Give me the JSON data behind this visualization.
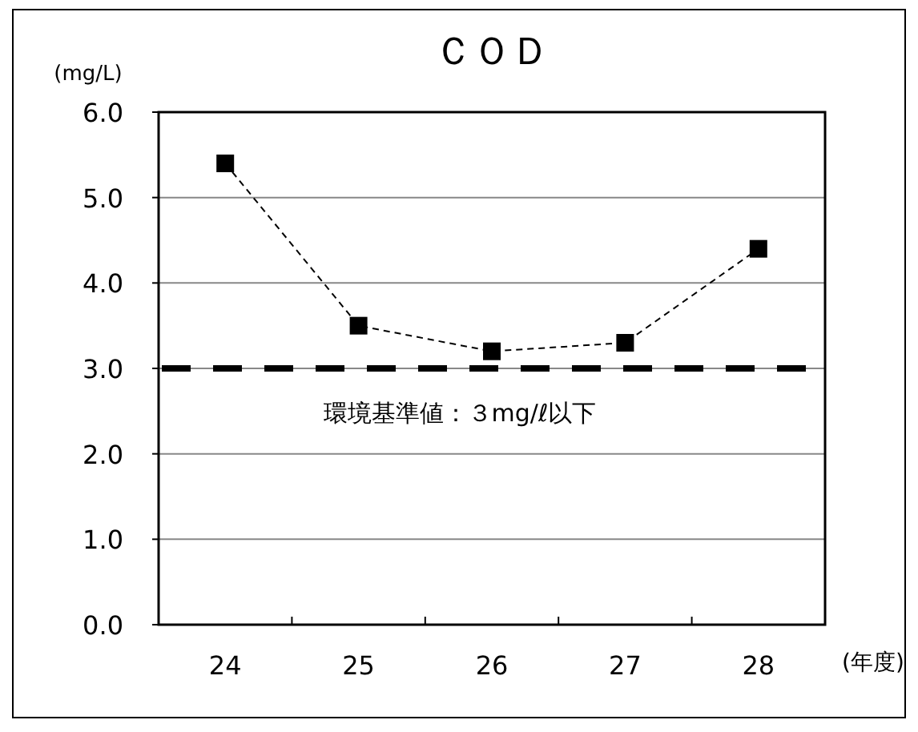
{
  "chart_data": {
    "type": "line",
    "title": "ＣＯＤ",
    "ylabel": "(mg/L)",
    "xlabel": "(年度)",
    "categories": [
      "24",
      "25",
      "26",
      "27",
      "28"
    ],
    "series": [
      {
        "color": "#000000",
        "values": [
          5.4,
          3.5,
          3.2,
          3.3,
          4.4
        ]
      }
    ],
    "ylim": [
      0,
      6
    ],
    "yticks": [
      {
        "value": 0,
        "label": "0.0"
      },
      {
        "value": 1,
        "label": "1.0"
      },
      {
        "value": 2,
        "label": "2.0"
      },
      {
        "value": 3,
        "label": "3.0"
      },
      {
        "value": 4,
        "label": "4.0"
      },
      {
        "value": 5,
        "label": "5.0"
      },
      {
        "value": 6,
        "label": "6.0"
      }
    ],
    "grid": "y",
    "marker": "square",
    "line_style": "dashed",
    "ref_lines": [
      {
        "axis": "y",
        "value": 3,
        "label": "環境基準値：３mg/ℓ以下",
        "color": "#000000",
        "line_style": "dashed"
      }
    ]
  }
}
